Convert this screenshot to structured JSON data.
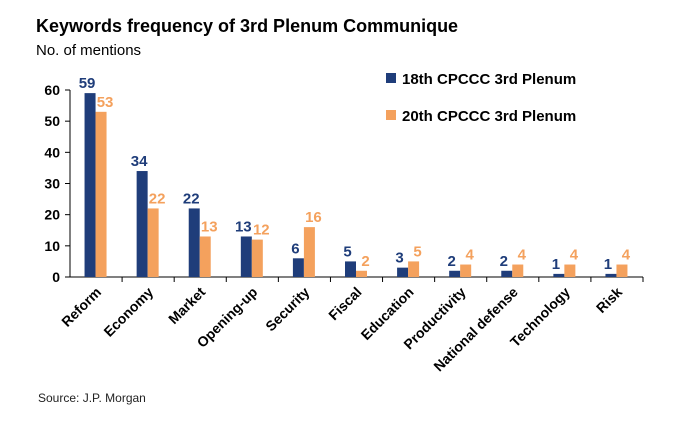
{
  "chart_data": {
    "type": "bar",
    "title": "Keywords frequency of 3rd Plenum Communique",
    "subtitle": "No. of mentions",
    "xlabel": "",
    "ylabel": "",
    "ylim": [
      0,
      60
    ],
    "yticks": [
      0,
      10,
      20,
      30,
      40,
      50,
      60
    ],
    "categories": [
      "Reform",
      "Economy",
      "Market",
      "Opening-up",
      "Security",
      "Fiscal",
      "Education",
      "Productivity",
      "National defense",
      "Technology",
      "Risk"
    ],
    "series": [
      {
        "name": "18th CPCCC 3rd Plenum",
        "color": "#1f3d7a",
        "values": [
          59,
          34,
          22,
          13,
          6,
          5,
          3,
          2,
          2,
          1,
          1
        ]
      },
      {
        "name": "20th CPCCC 3rd Plenum",
        "color": "#f4a15d",
        "values": [
          53,
          22,
          13,
          12,
          16,
          2,
          5,
          4,
          4,
          4,
          4
        ]
      }
    ],
    "legend_position": "top-right",
    "grid": false,
    "source": "Source: J.P. Morgan"
  }
}
